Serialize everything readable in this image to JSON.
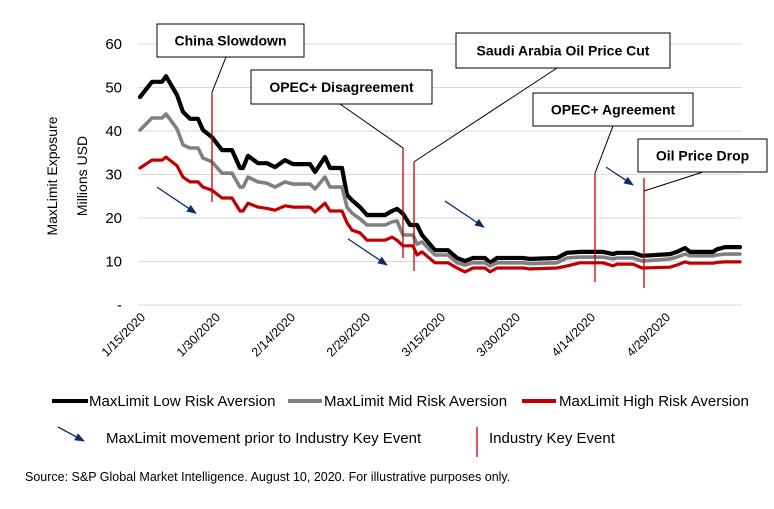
{
  "chart_data": {
    "type": "line",
    "title": "",
    "xlabel": "",
    "ylabel": "MaxLimit Exposure",
    "ylabel2": "Millions USD",
    "x_origin_date": "1/15/2020",
    "x_unit": "days since 1/15/2020",
    "xlim": [
      0,
      120
    ],
    "ylim": [
      0,
      60
    ],
    "grid": true,
    "y_ticks": [
      {
        "value": 0,
        "label": "-"
      },
      {
        "value": 10,
        "label": "10"
      },
      {
        "value": 20,
        "label": "20"
      },
      {
        "value": 30,
        "label": "30"
      },
      {
        "value": 40,
        "label": "40"
      },
      {
        "value": 50,
        "label": "50"
      },
      {
        "value": 60,
        "label": "60"
      }
    ],
    "x_ticks": [
      {
        "day": 0,
        "label": "1/15/2020"
      },
      {
        "day": 15,
        "label": "1/30/2020"
      },
      {
        "day": 30,
        "label": "2/14/2020"
      },
      {
        "day": 45,
        "label": "2/29/2020"
      },
      {
        "day": 60,
        "label": "3/15/2020"
      },
      {
        "day": 75,
        "label": "3/30/2020"
      },
      {
        "day": 90,
        "label": "4/14/2020"
      },
      {
        "day": 105,
        "label": "4/29/2020"
      }
    ],
    "x": [
      0,
      2.4,
      4.4,
      5.2,
      7.4,
      8.6,
      10,
      11.6,
      12.6,
      14.4,
      16.4,
      18.4,
      20,
      20.6,
      21.6,
      23.6,
      25.4,
      27,
      29,
      30.6,
      34,
      35,
      37,
      38,
      40.4,
      41.4,
      42.4,
      44,
      45.4,
      47.4,
      49,
      50.4,
      51.4,
      52.6,
      54,
      54.6,
      55.4,
      56.4,
      59,
      61.6,
      63.4,
      65,
      66.6,
      69,
      70,
      71.4,
      76.6,
      78,
      83.4,
      85.4,
      88,
      92.6,
      94.6,
      95.4,
      98.6,
      100.4,
      106,
      107.4,
      109,
      110,
      114.6,
      115.4,
      117,
      120
    ],
    "series": [
      {
        "name": "MaxLimit Low Risk Aversion",
        "color": "#000000",
        "values": [
          47.8,
          51.3,
          51.3,
          52.6,
          48.3,
          44.4,
          42.8,
          42.8,
          40.2,
          38.6,
          35.6,
          35.6,
          31.5,
          31.5,
          34.3,
          32.6,
          32.6,
          31.7,
          33.3,
          32.4,
          32.4,
          30.6,
          34.0,
          31.5,
          31.5,
          25.3,
          24.1,
          22.5,
          20.7,
          20.7,
          20.7,
          21.6,
          22.1,
          21.0,
          18.4,
          18.4,
          18.4,
          16.1,
          12.6,
          12.6,
          10.8,
          10.1,
          10.8,
          10.8,
          9.7,
          10.8,
          10.8,
          10.6,
          10.8,
          12.0,
          12.2,
          12.2,
          11.7,
          12.0,
          12.0,
          11.3,
          11.7,
          12.2,
          13.1,
          12.2,
          12.2,
          12.8,
          13.3,
          13.3
        ]
      },
      {
        "name": "MaxLimit Mid Risk Aversion",
        "color": "#808080",
        "values": [
          40.2,
          43.0,
          43.0,
          43.9,
          40.5,
          36.8,
          36.1,
          36.1,
          33.8,
          32.9,
          30.3,
          30.3,
          27.1,
          27.1,
          29.4,
          28.3,
          28.0,
          27.1,
          28.3,
          27.8,
          27.8,
          26.7,
          29.4,
          27.1,
          27.1,
          22.5,
          21.1,
          19.8,
          18.4,
          18.4,
          18.4,
          19.1,
          19.3,
          16.1,
          16.1,
          16.1,
          14.0,
          14.5,
          11.5,
          11.5,
          9.7,
          9.2,
          9.7,
          9.7,
          9.0,
          9.7,
          9.7,
          9.5,
          9.7,
          10.8,
          11.0,
          11.0,
          10.6,
          10.8,
          10.8,
          10.1,
          10.6,
          11.0,
          11.7,
          11.3,
          11.3,
          11.5,
          11.7,
          11.7
        ]
      },
      {
        "name": "MaxLimit High Risk Aversion",
        "color": "#c00000",
        "values": [
          31.5,
          33.3,
          33.3,
          34.0,
          32.0,
          29.4,
          28.3,
          28.3,
          27.1,
          26.4,
          24.6,
          24.6,
          21.6,
          21.6,
          23.4,
          22.5,
          22.2,
          21.8,
          22.8,
          22.5,
          22.5,
          21.4,
          23.4,
          21.6,
          21.6,
          18.9,
          17.2,
          16.6,
          14.9,
          14.9,
          14.9,
          15.6,
          14.9,
          13.6,
          13.6,
          13.6,
          11.5,
          12.2,
          9.7,
          9.7,
          8.5,
          7.6,
          8.5,
          8.5,
          7.6,
          8.5,
          8.5,
          8.3,
          8.5,
          9.0,
          9.7,
          9.7,
          9.0,
          9.4,
          9.4,
          8.5,
          8.7,
          9.2,
          9.9,
          9.6,
          9.6,
          9.8,
          9.9,
          9.9
        ]
      }
    ],
    "events": [
      {
        "label": "China Slowdown",
        "day": 14.4,
        "y_range": [
          23.7,
          48.9
        ]
      },
      {
        "label": "OPEC+ Disagreement",
        "day": 52.6,
        "y_range": [
          10.8,
          36.1
        ]
      },
      {
        "label": "Saudi Arabia Oil Price Cut",
        "day": 54.8,
        "y_range": [
          7.8,
          32.9
        ]
      },
      {
        "label": "OPEC+ Agreement",
        "day": 91,
        "y_range": [
          5.3,
          30.3
        ]
      },
      {
        "label": "Oil Price Drop",
        "day": 100.8,
        "y_range": [
          3.9,
          29.2
        ]
      }
    ],
    "movement_arrows": [
      {
        "from": [
          3.4,
          27.1
        ],
        "to": [
          11.2,
          21.1
        ]
      },
      {
        "from": [
          41.6,
          15.2
        ],
        "to": [
          49.4,
          9.2
        ]
      },
      {
        "from": [
          61.0,
          23.9
        ],
        "to": [
          68.8,
          17.9
        ]
      },
      {
        "from": [
          93.2,
          31.7
        ],
        "to": [
          98.6,
          27.6
        ]
      }
    ],
    "colors": {
      "grid": "#d9d9d9",
      "event_line": "#c00000",
      "arrow": "#0f2d69"
    },
    "legend": {
      "placement": "bottom",
      "series_entries": [
        "MaxLimit Low Risk Aversion",
        "MaxLimit Mid Risk Aversion",
        "MaxLimit High Risk Aversion"
      ],
      "arrow_entry": "MaxLimit movement prior to Industry Key Event",
      "event_entry": "Industry Key Event"
    }
  },
  "footer": {
    "source": "Source: S&P Global Market Intelligence. August 10, 2020. For illustrative purposes only."
  }
}
